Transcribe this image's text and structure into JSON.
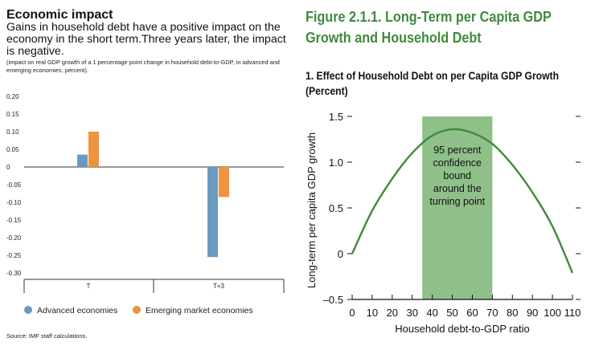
{
  "left_panel": {
    "title": "Economic impact",
    "subtitle": "Gains in household debt have a positive impact on the economy in the short term.Three years later, the impact is negative.",
    "note": "(impact on real GDP growth of a 1 percentage point change in household debt-to-GDP, in advanced and emerging economies, percent).",
    "source": "Source: IMF staff calculations."
  },
  "right_panel": {
    "title": "Figure 2.1.1. Long-Term per Capita GDP Growth and Household Debt",
    "subtitle": "1. Effect of Household Debt on per Capita GDP Growth (Percent)"
  },
  "colors": {
    "advanced": "#6b9ac0",
    "emerging": "#f0923e",
    "band": "#8fc08a",
    "curve": "#3f8a3b"
  },
  "chart_data": [
    {
      "type": "bar",
      "categories": [
        "T",
        "T+3"
      ],
      "series": [
        {
          "name": "Advanced economies",
          "values": [
            0.035,
            -0.255
          ]
        },
        {
          "name": "Emerging market economies",
          "values": [
            0.1,
            -0.085
          ]
        }
      ],
      "yticks": [
        "0.20",
        "0.15",
        "0.10",
        "0.05",
        "0",
        "-0.05",
        "-0.10",
        "-0.15",
        "-0.20",
        "-0.25",
        "-0.30"
      ],
      "ylim": [
        -0.3,
        0.2
      ],
      "legend_position": "bottom"
    },
    {
      "type": "line",
      "title": "1. Effect of Household Debt on per Capita GDP Growth (Percent)",
      "xlabel": "Household debt-to-GDP ratio",
      "ylabel": "Long-term per capita GDP growth",
      "x": [
        0,
        10,
        20,
        30,
        40,
        50,
        60,
        70,
        80,
        90,
        100,
        110
      ],
      "y": [
        0.0,
        0.47,
        0.82,
        1.1,
        1.29,
        1.36,
        1.32,
        1.2,
        0.97,
        0.67,
        0.3,
        -0.21
      ],
      "xticks": [
        "0",
        "10",
        "20",
        "30",
        "40",
        "50",
        "60",
        "70",
        "80",
        "90",
        "100",
        "110"
      ],
      "yticks": [
        "1.5",
        "1.0",
        "0.5",
        "0",
        "–0.5"
      ],
      "ytick_values": [
        1.5,
        1.0,
        0.5,
        0,
        -0.5
      ],
      "xlim": [
        0,
        110
      ],
      "ylim": [
        -0.5,
        1.5
      ],
      "band": {
        "x_start": 35,
        "x_end": 70,
        "label": [
          "95 percent",
          "confidence",
          "bound",
          "around the",
          "turning point"
        ]
      }
    }
  ]
}
